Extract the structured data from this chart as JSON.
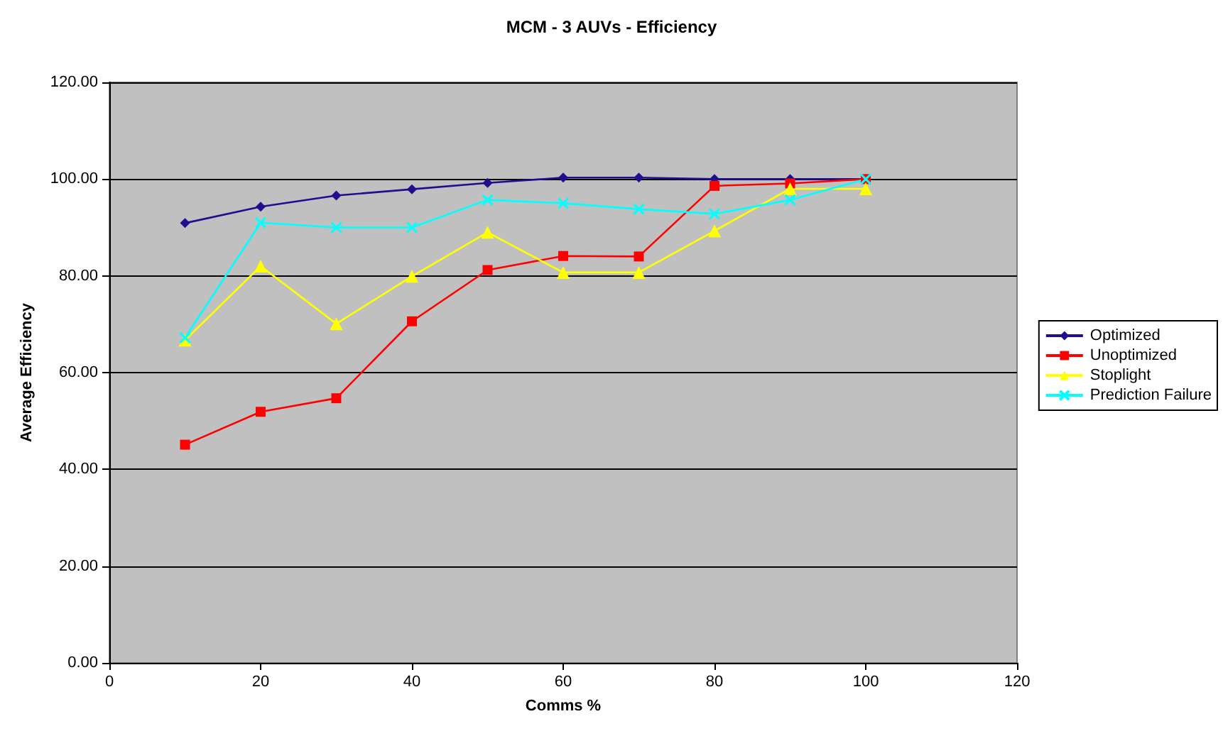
{
  "chart_data": {
    "type": "line",
    "title": "MCM - 3 AUVs - Efficiency",
    "xlabel": "Comms %",
    "ylabel": "Average Efficiency",
    "x": [
      10,
      20,
      30,
      40,
      50,
      60,
      70,
      80,
      90,
      100
    ],
    "series": [
      {
        "name": "Optimized",
        "color": "#1f0f8f",
        "marker": "diamond",
        "values": [
          90.9,
          94.3,
          96.6,
          97.9,
          99.2,
          100.3,
          100.3,
          100,
          100,
          100
        ]
      },
      {
        "name": "Unoptimized",
        "color": "#ff0000",
        "marker": "square",
        "values": [
          45.1,
          51.9,
          54.7,
          70.6,
          81.2,
          84.1,
          84.0,
          98.6,
          99.1,
          100
        ]
      },
      {
        "name": "Stoplight",
        "color": "#ffff00",
        "marker": "triangle",
        "values": [
          66.7,
          82.0,
          70.1,
          79.9,
          89.0,
          80.7,
          80.7,
          89.3,
          98.0,
          98.0
        ]
      },
      {
        "name": "Prediction Failure",
        "color": "#00ffff",
        "marker": "cross",
        "values": [
          67.2,
          91.0,
          90.0,
          90.0,
          95.7,
          95.0,
          93.8,
          92.8,
          95.7,
          100
        ]
      }
    ],
    "xlim": [
      0,
      120
    ],
    "xticks": [
      0,
      20,
      40,
      60,
      80,
      100,
      120
    ],
    "ylim": [
      0,
      120
    ],
    "yticks": [
      {
        "value": 0,
        "label": "0.00"
      },
      {
        "value": 20,
        "label": "20.00"
      },
      {
        "value": 40,
        "label": "40.00"
      },
      {
        "value": 60,
        "label": "60.00"
      },
      {
        "value": 80,
        "label": "80.00"
      },
      {
        "value": 100,
        "label": "100.00"
      },
      {
        "value": 120,
        "label": "120.00"
      }
    ],
    "grid": "y",
    "legend": "right"
  }
}
